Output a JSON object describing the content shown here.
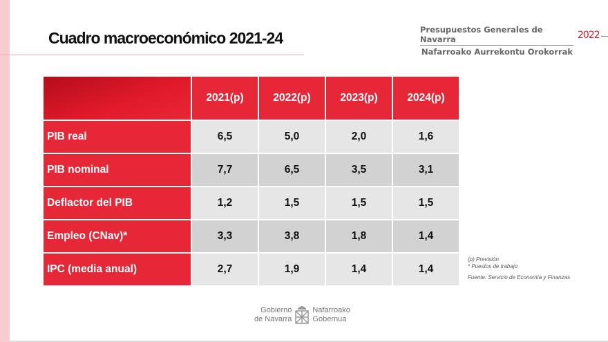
{
  "title": "Cuadro macroeconómico 2021-24",
  "brand": {
    "line1": "Presupuestos Generales de Navarra",
    "line2": "Nafarroako Aurrekontu Orokorrak",
    "year": "2022"
  },
  "table": {
    "columns": [
      "2021(p)",
      "2022(p)",
      "2023(p)",
      "2024(p)"
    ],
    "rows": [
      {
        "label": "PIB real",
        "values": [
          "6,5",
          "5,0",
          "2,0",
          "1,6"
        ]
      },
      {
        "label": "PIB nominal",
        "values": [
          "7,7",
          "6,5",
          "3,5",
          "3,1"
        ]
      },
      {
        "label": "Deflactor del PIB",
        "values": [
          "1,2",
          "1,5",
          "1,5",
          "1,5"
        ]
      },
      {
        "label": "Empleo (CNav)*",
        "values": [
          "3,3",
          "3,8",
          "1,8",
          "1,4"
        ]
      },
      {
        "label": "IPC (media anual)",
        "values": [
          "2,7",
          "1,9",
          "1,4",
          "1,4"
        ]
      }
    ]
  },
  "notes": {
    "n1": "(p) Previsión",
    "n2": "* Puestos de trabajo",
    "source": "Fuente: Servicio de Economía y Finanzas"
  },
  "logo": {
    "left1": "Gobierno",
    "left2": "de Navarra",
    "right1": "Nafarroako",
    "right2": "Gobernua"
  }
}
